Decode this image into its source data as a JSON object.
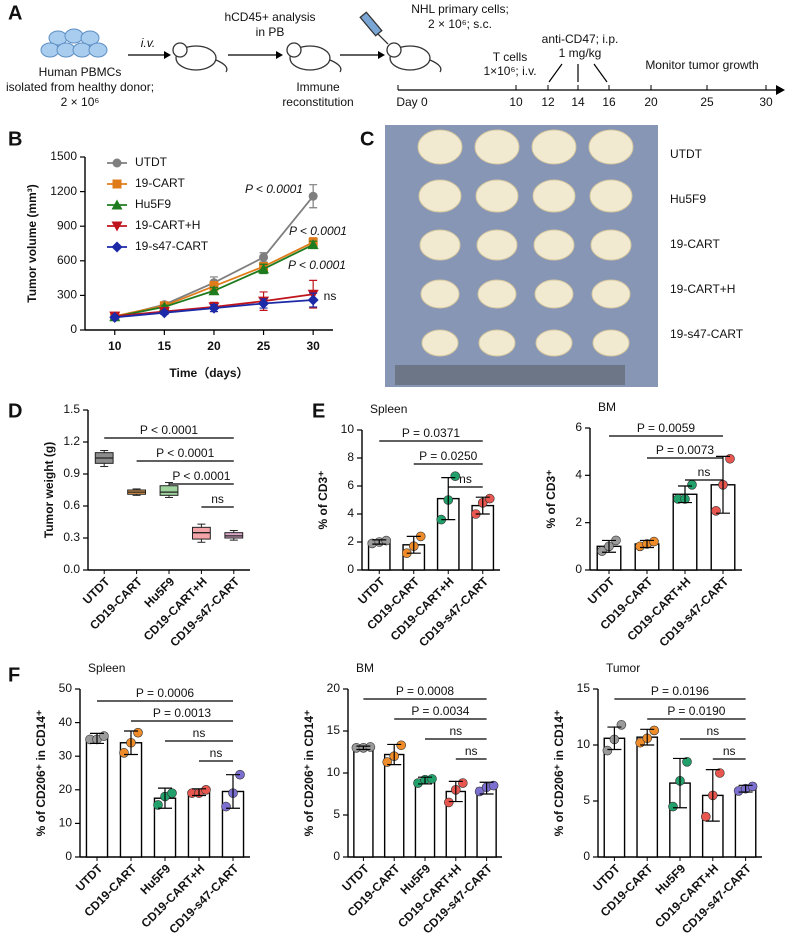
{
  "panel_labels": [
    "A",
    "B",
    "C",
    "D",
    "E",
    "F"
  ],
  "schematic": {
    "pbmc": [
      "Human PBMCs",
      "isolated from healthy donor;",
      "2 × 10⁶"
    ],
    "iv": "i.v.",
    "analysis": [
      "hCD45+ analysis",
      "in PB"
    ],
    "immune": [
      "Immune",
      "reconstitution"
    ],
    "nhl": [
      "NHL primary cells;",
      "2 × 10⁶; s.c."
    ],
    "tcells": [
      "T cells",
      "1×10⁶; i.v."
    ],
    "antibody": [
      "anti-CD47; i.p.",
      "1 mg/kg"
    ],
    "monitor": "Monitor tumor growth",
    "timeline": [
      "Day 0",
      "10",
      "12",
      "14",
      "16",
      "20",
      "25",
      "30"
    ]
  },
  "photo_labels": [
    "UTDT",
    "Hu5F9",
    "19-CART",
    "19-CART+H",
    "19-s47-CART"
  ],
  "chart_data": [
    {
      "type": "line",
      "x_label": "Time（days）",
      "y_label": "Tumor volume (mm³)",
      "x": [
        10,
        15,
        20,
        25,
        30
      ],
      "xlim": [
        7,
        32
      ],
      "xticks": [
        10,
        15,
        20,
        25,
        30
      ],
      "ylim": [
        0,
        1500
      ],
      "yticks": [
        0,
        300,
        600,
        900,
        1200,
        1500
      ],
      "legend": "upper-left",
      "series": [
        {
          "name": "UTDT",
          "color": "#7f7f7f",
          "values": [
            110,
            220,
            410,
            630,
            1160
          ],
          "errors": [
            15,
            20,
            50,
            40,
            100
          ]
        },
        {
          "name": "19-CART",
          "color": "#e07b1a",
          "values": [
            120,
            210,
            380,
            550,
            760
          ],
          "errors": [
            12,
            15,
            40,
            30,
            40
          ]
        },
        {
          "name": "Hu5F9",
          "color": "#1e7b1e",
          "values": [
            115,
            200,
            340,
            530,
            740
          ],
          "errors": [
            10,
            15,
            30,
            40,
            30
          ]
        },
        {
          "name": "19-CART+H",
          "color": "#c0141c",
          "values": [
            120,
            160,
            200,
            250,
            310
          ],
          "errors": [
            15,
            20,
            40,
            80,
            120
          ]
        },
        {
          "name": "19-s47-CART",
          "color": "#1c2aa8",
          "values": [
            110,
            150,
            190,
            230,
            260
          ],
          "errors": [
            10,
            15,
            30,
            40,
            60
          ]
        }
      ],
      "annotations": [
        "P < 0.0001",
        "P < 0.0001",
        "P < 0.0001",
        "ns"
      ]
    },
    {
      "type": "box",
      "y_label": "Tumor weight (g)",
      "categories": [
        "UTDT",
        "CD19-CART",
        "Hu5F9",
        "CD19-CART+H",
        "CD19-s47-CART"
      ],
      "colors": [
        "#8c8c8c",
        "#f0a04b",
        "#9ed39e",
        "#f4a3a8",
        "#d9a6c8"
      ],
      "boxes": [
        {
          "min": 0.97,
          "q1": 1.0,
          "median": 1.05,
          "q3": 1.1,
          "max": 1.12
        },
        {
          "min": 0.7,
          "q1": 0.71,
          "median": 0.73,
          "q3": 0.75,
          "max": 0.76
        },
        {
          "min": 0.68,
          "q1": 0.7,
          "median": 0.73,
          "q3": 0.79,
          "max": 0.82
        },
        {
          "min": 0.26,
          "q1": 0.29,
          "median": 0.35,
          "q3": 0.4,
          "max": 0.43
        },
        {
          "min": 0.28,
          "q1": 0.3,
          "median": 0.32,
          "q3": 0.35,
          "max": 0.37
        }
      ],
      "ylim": [
        0,
        1.5
      ],
      "yticks": [
        {
          "value": 0,
          "label": "0.0"
        },
        0.3,
        0.6,
        0.9,
        1.2,
        1.5
      ],
      "comparisons": [
        {
          "from": 0,
          "to": 4,
          "label": "P < 0.0001"
        },
        {
          "from": 1,
          "to": 4,
          "label": "P < 0.0001"
        },
        {
          "from": 2,
          "to": 4,
          "label": "P < 0.0001"
        },
        {
          "from": 3,
          "to": 4,
          "label": "ns"
        }
      ]
    },
    {
      "type": "bar",
      "title": "Spleen",
      "y_label": "% of CD3⁺",
      "categories": [
        "UTDT",
        "CD19-CART",
        "CD19-CART+H",
        "CD19-s47-CART"
      ],
      "values": [
        2.0,
        1.8,
        5.1,
        4.6
      ],
      "errors": [
        0.15,
        0.6,
        1.5,
        0.6
      ],
      "points": [
        [
          1.9,
          2.0,
          2.1
        ],
        [
          1.2,
          1.7,
          2.4
        ],
        [
          3.6,
          5.0,
          6.7
        ],
        [
          4.0,
          4.8,
          5.1
        ]
      ],
      "colors": [
        "#9a9a9a",
        "#ef8c2a",
        "#22a06b",
        "#e8574f"
      ],
      "ylim": [
        0,
        10
      ],
      "yticks": [
        0,
        2,
        4,
        6,
        8,
        10
      ],
      "comparisons": [
        {
          "from": 0,
          "to": 3,
          "label": "P = 0.0371"
        },
        {
          "from": 1,
          "to": 3,
          "label": "P = 0.0250"
        },
        {
          "from": 2,
          "to": 3,
          "label": "ns"
        }
      ]
    },
    {
      "type": "bar",
      "title": "BM",
      "y_label": "% of CD3⁺",
      "categories": [
        "UTDT",
        "CD19-CART",
        "CD19-CART+H",
        "CD19-s47-CART"
      ],
      "values": [
        1.0,
        1.1,
        3.2,
        3.6
      ],
      "errors": [
        0.25,
        0.15,
        0.35,
        1.2
      ],
      "points": [
        [
          0.8,
          1.0,
          1.25
        ],
        [
          1.0,
          1.1,
          1.2
        ],
        [
          3.0,
          3.0,
          3.6
        ],
        [
          2.5,
          3.6,
          4.7
        ]
      ],
      "colors": [
        "#9a9a9a",
        "#ef8c2a",
        "#22a06b",
        "#e8574f"
      ],
      "ylim": [
        0,
        6
      ],
      "yticks": [
        0,
        2,
        4,
        6
      ],
      "comparisons": [
        {
          "from": 0,
          "to": 3,
          "label": "P = 0.0059"
        },
        {
          "from": 1,
          "to": 3,
          "label": "P = 0.0073"
        },
        {
          "from": 2,
          "to": 3,
          "label": "ns"
        }
      ]
    },
    {
      "type": "bar",
      "title": "Spleen",
      "y_label": "% of CD206⁺ in CD14⁺",
      "categories": [
        "UTDT",
        "CD19-CART",
        "Hu5F9",
        "CD19-CART+H",
        "CD19-s47-CART"
      ],
      "values": [
        35.3,
        34,
        17.5,
        19.3,
        19.5
      ],
      "errors": [
        1.5,
        3.5,
        3,
        1,
        5
      ],
      "points": [
        [
          35,
          35,
          36
        ],
        [
          31,
          34,
          37
        ],
        [
          15.5,
          18,
          19
        ],
        [
          19,
          19,
          20
        ],
        [
          15,
          19,
          24.5
        ]
      ],
      "colors": [
        "#9a9a9a",
        "#ef8c2a",
        "#22a06b",
        "#e8574f",
        "#7b6fd0"
      ],
      "ylim": [
        0,
        50
      ],
      "yticks": [
        0,
        10,
        20,
        30,
        40,
        50
      ],
      "comparisons": [
        {
          "from": 0,
          "to": 4,
          "label": "P = 0.0006"
        },
        {
          "from": 1,
          "to": 4,
          "label": "P = 0.0013"
        },
        {
          "from": 2,
          "to": 4,
          "label": "ns"
        },
        {
          "from": 3,
          "to": 4,
          "label": "ns"
        }
      ]
    },
    {
      "type": "bar",
      "title": "BM",
      "y_label": "% of CD206⁺ in CD14⁺",
      "categories": [
        "UTDT",
        "CD19-CART",
        "Hu5F9",
        "CD19-CART+H",
        "CD19-s47-CART"
      ],
      "values": [
        13,
        12.2,
        9.1,
        7.8,
        8.2
      ],
      "errors": [
        0.2,
        1.2,
        0.4,
        1.2,
        0.7
      ],
      "points": [
        [
          13,
          13,
          13.1
        ],
        [
          11.3,
          12,
          13.3
        ],
        [
          8.8,
          9.2,
          9.3
        ],
        [
          6.5,
          8,
          8.8
        ],
        [
          7.8,
          8.3,
          8.5
        ]
      ],
      "colors": [
        "#9a9a9a",
        "#ef8c2a",
        "#22a06b",
        "#e8574f",
        "#7b6fd0"
      ],
      "ylim": [
        0,
        20
      ],
      "yticks": [
        0,
        5,
        10,
        15,
        20
      ],
      "comparisons": [
        {
          "from": 0,
          "to": 4,
          "label": "P = 0.0008"
        },
        {
          "from": 1,
          "to": 4,
          "label": "P = 0.0034"
        },
        {
          "from": 2,
          "to": 4,
          "label": "ns"
        },
        {
          "from": 3,
          "to": 4,
          "label": "ns"
        }
      ]
    },
    {
      "type": "bar",
      "title": "Tumor",
      "y_label": "% of CD206⁺ in CD14⁺",
      "categories": [
        "UTDT",
        "CD19-CART",
        "Hu5F9",
        "CD19-CART+H",
        "CD19-s47-CART"
      ],
      "values": [
        10.6,
        10.7,
        6.6,
        5.5,
        6.1
      ],
      "errors": [
        1,
        0.7,
        2.2,
        2.3,
        0.3
      ],
      "points": [
        [
          9.5,
          10.5,
          11.8
        ],
        [
          10.2,
          10.6,
          11.3
        ],
        [
          4.5,
          6.8,
          8.5
        ],
        [
          3.6,
          5.5,
          7.5
        ],
        [
          5.9,
          6.1,
          6.3
        ]
      ],
      "colors": [
        "#9a9a9a",
        "#ef8c2a",
        "#22a06b",
        "#e8574f",
        "#7b6fd0"
      ],
      "ylim": [
        0,
        15
      ],
      "yticks": [
        0,
        5,
        10,
        15
      ],
      "comparisons": [
        {
          "from": 0,
          "to": 4,
          "label": "P = 0.0196"
        },
        {
          "from": 1,
          "to": 4,
          "label": "P = 0.0190"
        },
        {
          "from": 2,
          "to": 4,
          "label": "ns"
        },
        {
          "from": 3,
          "to": 4,
          "label": "ns"
        }
      ]
    }
  ]
}
